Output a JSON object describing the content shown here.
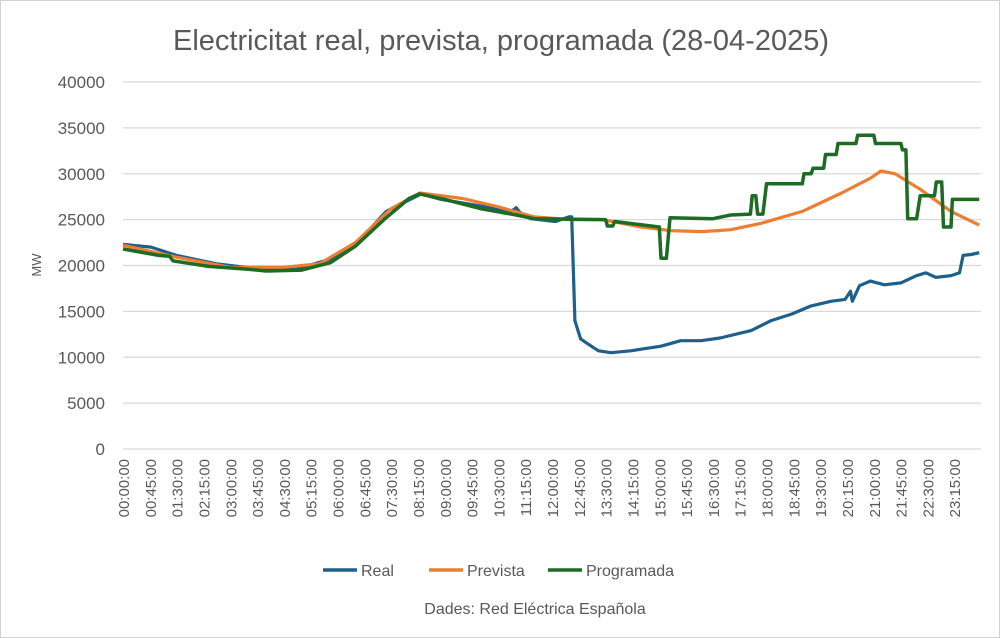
{
  "chart_data": {
    "type": "line",
    "title": "Electricitat real, prevista, programada (28-04-2025)",
    "ylabel": "MW",
    "xlabel": "",
    "ylim": [
      0,
      40000
    ],
    "yticks": [
      0,
      5000,
      10000,
      15000,
      20000,
      25000,
      30000,
      35000,
      40000
    ],
    "xticks": [
      "00:00:00",
      "00:45:00",
      "01:30:00",
      "02:15:00",
      "03:00:00",
      "03:45:00",
      "04:30:00",
      "05:15:00",
      "06:00:00",
      "06:45:00",
      "07:30:00",
      "08:15:00",
      "09:00:00",
      "09:45:00",
      "10:30:00",
      "11:15:00",
      "12:00:00",
      "12:45:00",
      "13:30:00",
      "14:15:00",
      "15:00:00",
      "15:45:00",
      "16:30:00",
      "17:15:00",
      "18:00:00",
      "18:45:00",
      "19:30:00",
      "20:15:00",
      "21:00:00",
      "21:45:00",
      "22:30:00",
      "23:15:00"
    ],
    "grid": true,
    "legend_position": "bottom",
    "x_unit": "hours",
    "series": [
      {
        "name": "Real",
        "color": "#1f5f8b",
        "points": [
          [
            0,
            22300
          ],
          [
            0.78,
            22000
          ],
          [
            1.5,
            21100
          ],
          [
            2.6,
            20200
          ],
          [
            3.86,
            19600
          ],
          [
            4.84,
            19600
          ],
          [
            5.8,
            20700
          ],
          [
            6.66,
            22900
          ],
          [
            7.36,
            25900
          ],
          [
            8.34,
            27800
          ],
          [
            8.9,
            27200
          ],
          [
            10,
            26500
          ],
          [
            10.85,
            25900
          ],
          [
            11.0,
            26300
          ],
          [
            11.1,
            25800
          ],
          [
            11.4,
            25100
          ],
          [
            12.1,
            24800
          ],
          [
            12.47,
            25300
          ],
          [
            12.55,
            25300
          ],
          [
            12.64,
            14000
          ],
          [
            12.8,
            12000
          ],
          [
            13.1,
            11200
          ],
          [
            13.3,
            10700
          ],
          [
            13.65,
            10500
          ],
          [
            14.2,
            10700
          ],
          [
            15.05,
            11200
          ],
          [
            15.6,
            11800
          ],
          [
            16.17,
            11800
          ],
          [
            16.7,
            12100
          ],
          [
            17.57,
            12900
          ],
          [
            18.13,
            14000
          ],
          [
            18.7,
            14700
          ],
          [
            19.25,
            15600
          ],
          [
            19.8,
            16100
          ],
          [
            20.2,
            16300
          ],
          [
            20.35,
            17200
          ],
          [
            20.4,
            16100
          ],
          [
            20.6,
            17800
          ],
          [
            20.9,
            18300
          ],
          [
            21.3,
            17900
          ],
          [
            21.76,
            18100
          ],
          [
            22.2,
            18900
          ],
          [
            22.46,
            19200
          ],
          [
            22.74,
            18700
          ],
          [
            23.16,
            18900
          ],
          [
            23.4,
            19200
          ],
          [
            23.5,
            21100
          ],
          [
            23.72,
            21200
          ],
          [
            23.95,
            21400
          ]
        ]
      },
      {
        "name": "Prevista",
        "color": "#ed7d31",
        "points": [
          [
            0,
            22200
          ],
          [
            1.5,
            20900
          ],
          [
            3,
            19800
          ],
          [
            4.5,
            19800
          ],
          [
            5.5,
            20200
          ],
          [
            6.5,
            22500
          ],
          [
            7.5,
            26200
          ],
          [
            8.3,
            27900
          ],
          [
            9.5,
            27300
          ],
          [
            10.5,
            26400
          ],
          [
            11.5,
            25300
          ],
          [
            12.5,
            25000
          ],
          [
            13.4,
            25000
          ],
          [
            14.5,
            24200
          ],
          [
            15.3,
            23800
          ],
          [
            16.2,
            23700
          ],
          [
            17,
            23900
          ],
          [
            17.85,
            24600
          ],
          [
            19,
            25900
          ],
          [
            20.1,
            27900
          ],
          [
            20.9,
            29500
          ],
          [
            21.2,
            30300
          ],
          [
            21.6,
            30000
          ],
          [
            22.3,
            28300
          ],
          [
            23.16,
            25900
          ],
          [
            23.95,
            24400
          ]
        ]
      },
      {
        "name": "Programada",
        "color": "#1e6b24",
        "points": [
          [
            0,
            21800
          ],
          [
            1,
            21100
          ],
          [
            1.3,
            21000
          ],
          [
            1.4,
            20500
          ],
          [
            2.4,
            19900
          ],
          [
            3.5,
            19600
          ],
          [
            4,
            19400
          ],
          [
            5,
            19500
          ],
          [
            5.8,
            20300
          ],
          [
            6.5,
            22100
          ],
          [
            7.3,
            25000
          ],
          [
            8,
            27300
          ],
          [
            8.3,
            27800
          ],
          [
            9,
            27200
          ],
          [
            10,
            26200
          ],
          [
            11,
            25500
          ],
          [
            11.5,
            25100
          ],
          [
            13.5,
            25000
          ],
          [
            13.55,
            24300
          ],
          [
            13.7,
            24300
          ],
          [
            13.75,
            24800
          ],
          [
            15.0,
            24200
          ],
          [
            15.05,
            20800
          ],
          [
            15.2,
            20800
          ],
          [
            15.3,
            25200
          ],
          [
            16.5,
            25100
          ],
          [
            17,
            25500
          ],
          [
            17.55,
            25600
          ],
          [
            17.6,
            27600
          ],
          [
            17.7,
            27600
          ],
          [
            17.75,
            25600
          ],
          [
            17.9,
            25600
          ],
          [
            18.0,
            28900
          ],
          [
            19.0,
            28900
          ],
          [
            19.05,
            30000
          ],
          [
            19.25,
            30000
          ],
          [
            19.3,
            30600
          ],
          [
            19.6,
            30600
          ],
          [
            19.65,
            32100
          ],
          [
            19.95,
            32100
          ],
          [
            20.0,
            33300
          ],
          [
            20.5,
            33300
          ],
          [
            20.55,
            34200
          ],
          [
            21.0,
            34200
          ],
          [
            21.05,
            33300
          ],
          [
            21.76,
            33300
          ],
          [
            21.8,
            32600
          ],
          [
            21.9,
            32600
          ],
          [
            21.95,
            25100
          ],
          [
            22.2,
            25100
          ],
          [
            22.3,
            27600
          ],
          [
            22.7,
            27600
          ],
          [
            22.75,
            29100
          ],
          [
            22.9,
            29100
          ],
          [
            22.95,
            24200
          ],
          [
            23.16,
            24200
          ],
          [
            23.2,
            27200
          ],
          [
            23.95,
            27200
          ]
        ]
      }
    ],
    "source": "Dades: Red Eléctrica Española"
  }
}
